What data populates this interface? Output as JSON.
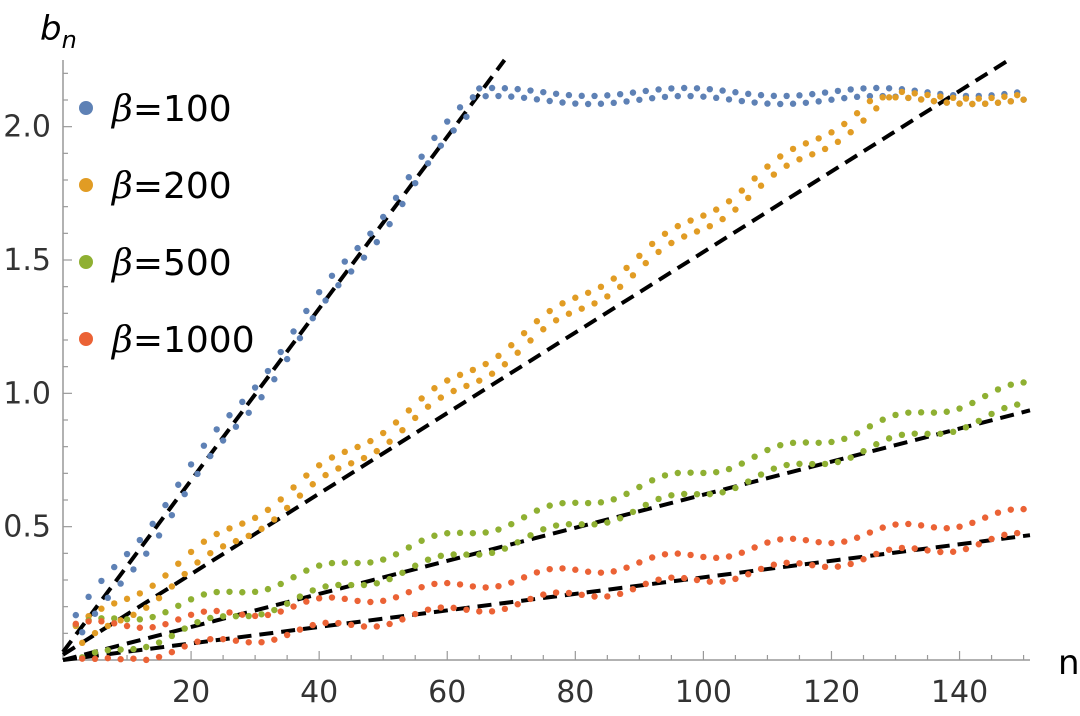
{
  "chart_data": {
    "type": "scatter",
    "title": "",
    "xlabel": "n",
    "ylabel": {
      "base": "b",
      "sub": "n"
    },
    "xlim": [
      0,
      151
    ],
    "ylim": [
      0,
      2.25
    ],
    "x_ticks": [
      20,
      40,
      60,
      80,
      100,
      120,
      140
    ],
    "y_ticks": [
      0.5,
      1.0,
      1.5,
      2.0
    ],
    "x_tick_labels": [
      "20",
      "40",
      "60",
      "80",
      "100",
      "120",
      "140"
    ],
    "y_tick_labels": [
      "0.5",
      "1.0",
      "1.5",
      "2.0"
    ],
    "grid": false,
    "legend_position": "top-left",
    "series": [
      {
        "name": {
          "symbol": "β",
          "label": "=100"
        },
        "color": "#5e81b5",
        "slope": 0.0322,
        "saturation": 2.1,
        "saturation_n": 65,
        "plateau_alt": 2.13,
        "oscillation": 0.03,
        "n_range": [
          2,
          150
        ]
      },
      {
        "name": {
          "symbol": "β",
          "label": "=200"
        },
        "color": "#e19c24",
        "slope": 0.0161,
        "saturation": 2.1,
        "saturation_n": 131,
        "plateau_alt": 2.12,
        "oscillation": 0.025,
        "n_range": [
          2,
          150
        ]
      },
      {
        "name": {
          "symbol": "β",
          "label": "=500"
        },
        "color": "#8fb032",
        "slope": 0.0063,
        "saturation": null,
        "oscillation": 0.04,
        "n_range": [
          2,
          150
        ]
      },
      {
        "name": {
          "symbol": "β",
          "label": "=1000"
        },
        "color": "#eb6235",
        "slope": 0.0031,
        "saturation": null,
        "oscillation": 0.045,
        "n_range": [
          2,
          150
        ]
      }
    ],
    "fit_lines": [
      {
        "slope": 0.0322,
        "intercept": 0.03,
        "x_end": 69,
        "color": "#000000",
        "style": "dashed"
      },
      {
        "slope": 0.0151,
        "intercept": 0.02,
        "x_end": 151,
        "color": "#000000",
        "style": "dashed"
      },
      {
        "slope": 0.0062,
        "intercept": 0.0,
        "x_end": 151,
        "color": "#000000",
        "style": "dashed"
      },
      {
        "slope": 0.0031,
        "intercept": 0.0,
        "x_end": 151,
        "color": "#000000",
        "style": "dashed"
      }
    ]
  }
}
